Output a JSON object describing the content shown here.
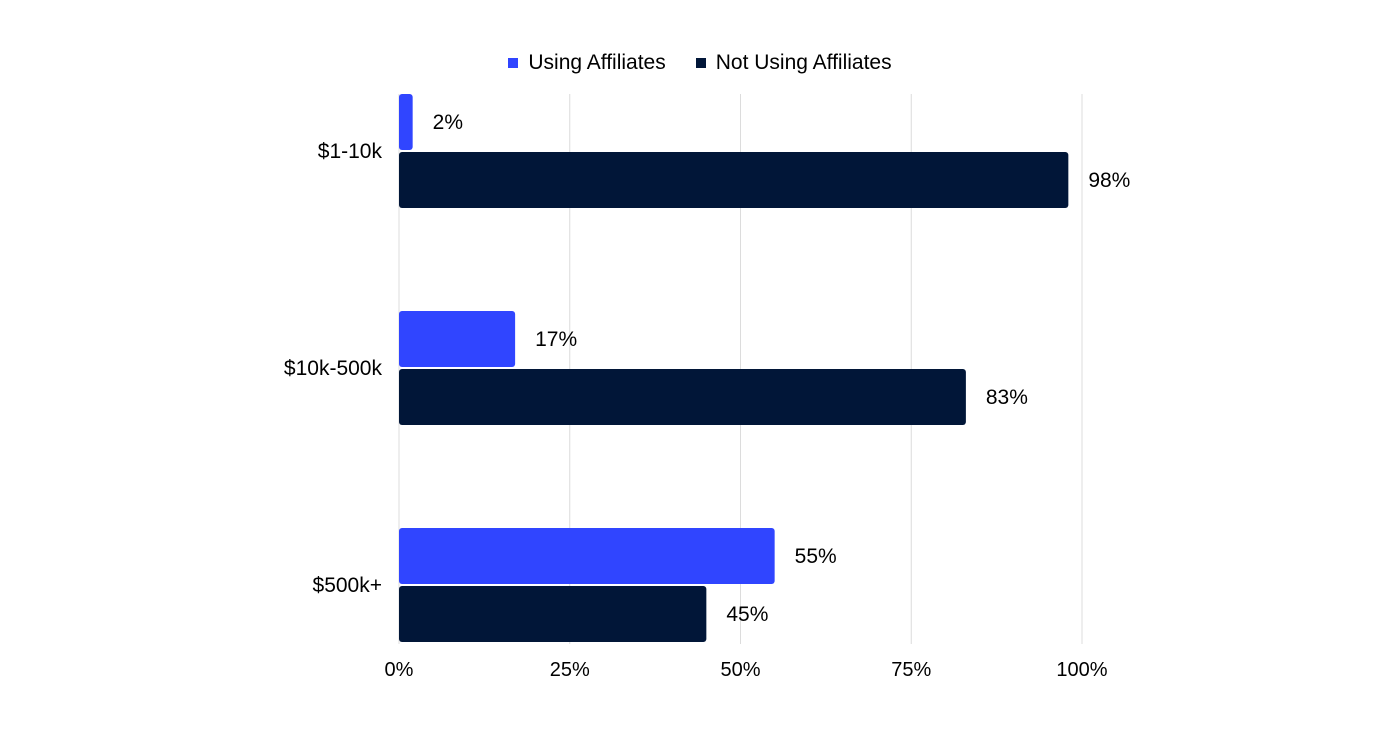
{
  "chart_data": {
    "type": "bar",
    "orientation": "horizontal",
    "categories": [
      "$1-10k",
      "$10k-500k",
      "$500k+"
    ],
    "series": [
      {
        "name": "Using Affiliates",
        "values": [
          2,
          17,
          55
        ],
        "labels": [
          "2%",
          "17%",
          "55%"
        ],
        "color": "#3045FF"
      },
      {
        "name": "Not Using Affiliates",
        "values": [
          98,
          83,
          45
        ],
        "labels": [
          "98%",
          "83%",
          "45%"
        ],
        "color": "#011638"
      }
    ],
    "xticks": [
      "0%",
      "25%",
      "50%",
      "75%",
      "100%"
    ],
    "xlim": [
      0,
      100
    ],
    "grid": true,
    "legend_position": "top-center",
    "title": "",
    "xlabel": "",
    "ylabel": ""
  }
}
